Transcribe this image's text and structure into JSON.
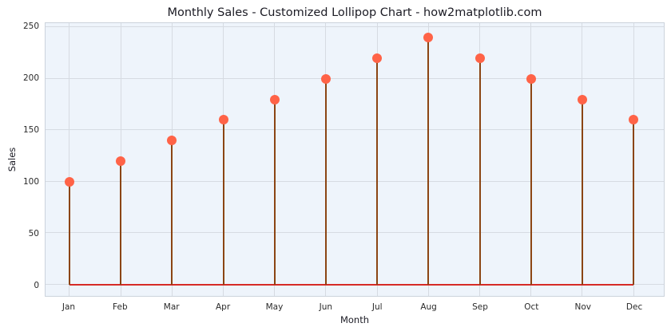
{
  "chart_data": {
    "type": "lollipop",
    "title": "Monthly Sales - Customized Lollipop Chart - how2matplotlib.com",
    "xlabel": "Month",
    "ylabel": "Sales",
    "categories": [
      "Jan",
      "Feb",
      "Mar",
      "Apr",
      "May",
      "Jun",
      "Jul",
      "Aug",
      "Sep",
      "Oct",
      "Nov",
      "Dec"
    ],
    "values": [
      100,
      120,
      140,
      160,
      180,
      200,
      220,
      240,
      220,
      200,
      180,
      160
    ],
    "yticks": [
      0,
      50,
      100,
      150,
      200,
      250
    ],
    "ylim": [
      -11,
      254
    ],
    "baseline_value": 0,
    "grid": true,
    "legend_position": "none",
    "colors": {
      "marker": "#ff6347",
      "stem": "#8b4513",
      "baseline": "#d62b26",
      "plot_background": "#eef4fb",
      "grid_line": "#d6dbe2",
      "spine": "#ccd3dc",
      "text": "#2a2a2a"
    },
    "layout": {
      "x_first_frac": 0.0386,
      "x_step_frac": 0.08296
    }
  }
}
